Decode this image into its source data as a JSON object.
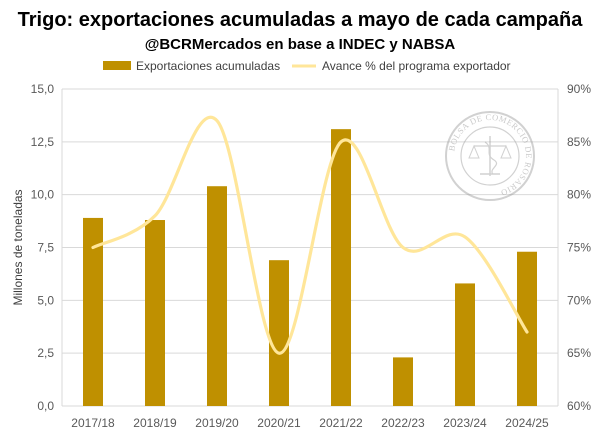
{
  "chart_data": {
    "type": "bar",
    "title": "Trigo: exportaciones acumuladas a mayo de cada campaña",
    "subtitle": "@BCRMercados en base a INDEC y NABSA",
    "categories": [
      "2017/18",
      "2018/19",
      "2019/20",
      "2020/21",
      "2021/22",
      "2022/23",
      "2023/24",
      "2024/25"
    ],
    "series": [
      {
        "name": "Exportaciones acumuladas",
        "type": "bar",
        "axis": "left",
        "values": [
          8.9,
          8.8,
          10.4,
          6.9,
          13.1,
          2.3,
          5.8,
          7.3
        ]
      },
      {
        "name": "Avance % del programa exportador",
        "type": "line",
        "axis": "right",
        "values": [
          75,
          78,
          87,
          65,
          85,
          75,
          76,
          67
        ]
      }
    ],
    "ylabel": "Millones de toneladas",
    "ylim": [
      0,
      15
    ],
    "yticks": [
      "0,0",
      "2,5",
      "5,0",
      "7,5",
      "10,0",
      "12,5",
      "15,0"
    ],
    "y2lim": [
      60,
      90
    ],
    "y2ticks": [
      "60%",
      "65%",
      "70%",
      "75%",
      "80%",
      "85%",
      "90%"
    ],
    "grid": true,
    "legend": "top-center",
    "colors": {
      "bar": "#bf9000",
      "line": "#ffe699",
      "grid": "#d9d9d9"
    }
  },
  "watermark": "BOLSA DE COMERCIO DE ROSARIO"
}
